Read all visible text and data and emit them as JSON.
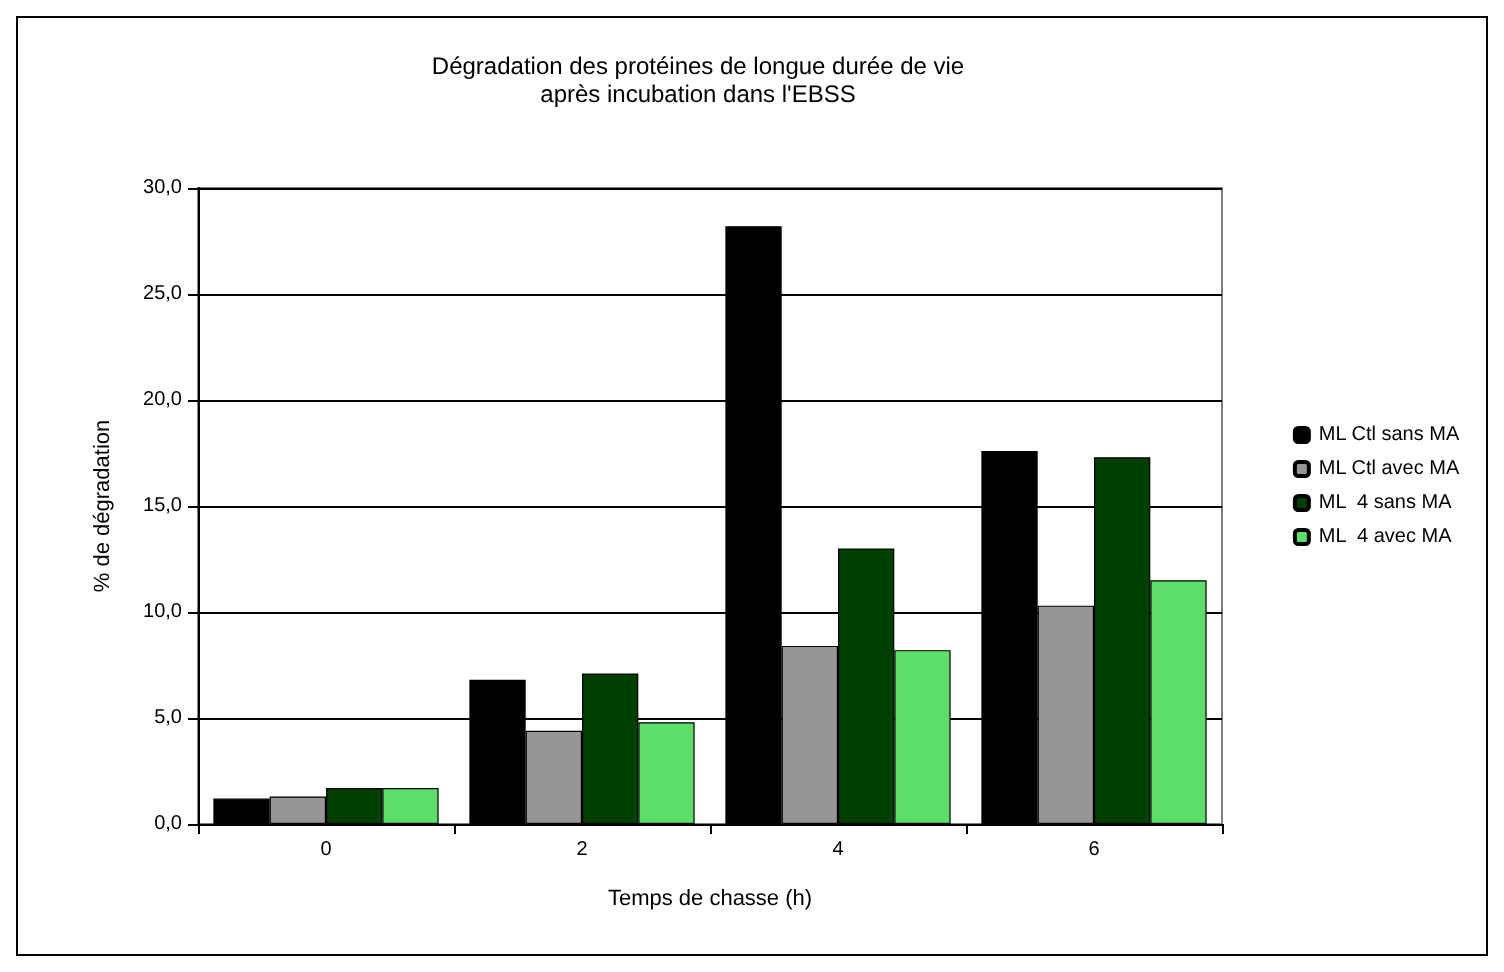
{
  "chart_data": {
    "type": "bar",
    "title": "Dégradation des protéines de longue durée de vie\naprès incubation dans l'EBSS",
    "xlabel": "Temps de chasse (h)",
    "ylabel": "% de dégradation",
    "categories": [
      "0",
      "2",
      "4",
      "6"
    ],
    "series": [
      {
        "name": "ML Ctl sans MA",
        "color": "#000000",
        "values": [
          1.2,
          6.8,
          28.2,
          17.6
        ]
      },
      {
        "name": "ML Ctl avec MA",
        "color": "#969696",
        "values": [
          1.3,
          4.4,
          8.4,
          10.3
        ]
      },
      {
        "name": "ML  4 sans MA",
        "color": "#003f00",
        "values": [
          1.7,
          7.1,
          13.0,
          17.3
        ]
      },
      {
        "name": "ML  4 avec MA",
        "color": "#5ae068",
        "values": [
          1.7,
          4.8,
          8.2,
          11.5
        ]
      }
    ],
    "ylim": [
      0,
      30
    ],
    "yticks": [
      {
        "value": 0,
        "label": "0,0"
      },
      {
        "value": 5,
        "label": "5,0"
      },
      {
        "value": 10,
        "label": "10,0"
      },
      {
        "value": 15,
        "label": "15,0"
      },
      {
        "value": 20,
        "label": "20,0"
      },
      {
        "value": 25,
        "label": "25,0"
      },
      {
        "value": 30,
        "label": "30,0"
      }
    ],
    "grid": "y",
    "legend": "right"
  }
}
